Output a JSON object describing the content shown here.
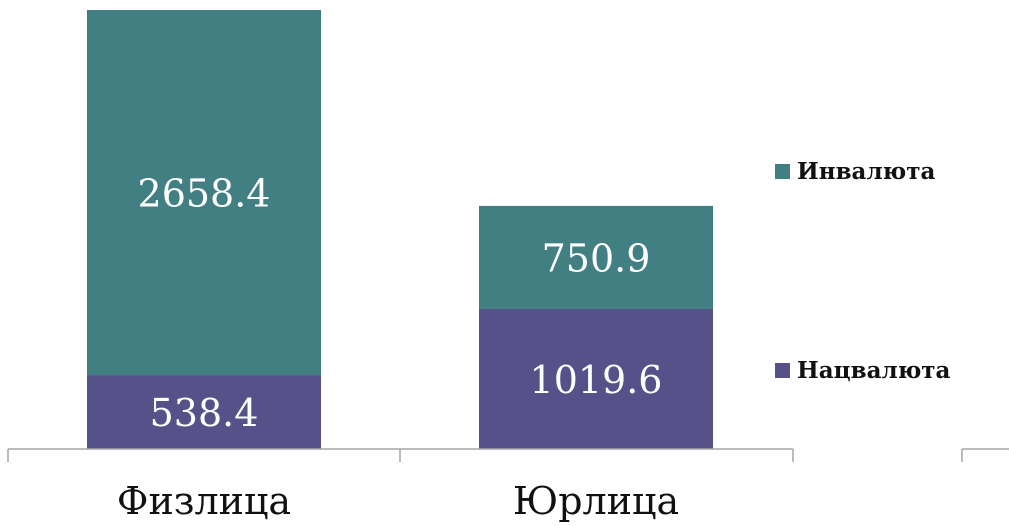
{
  "chart_data": {
    "type": "bar",
    "stacked": true,
    "categories": [
      "Физлица",
      "Юрлица"
    ],
    "series": [
      {
        "name": "Нацвалюта",
        "values": [
          538.4,
          1019.6
        ],
        "labels": [
          "538.4",
          "1019.6"
        ],
        "color": "#575189"
      },
      {
        "name": "Инвалюта",
        "values": [
          2658.4,
          750.9
        ],
        "labels": [
          "2658.4",
          "750.9"
        ],
        "color": "#427F82"
      }
    ],
    "grid": false,
    "legend_position": "right",
    "axis_color": "#a6a6a6"
  }
}
